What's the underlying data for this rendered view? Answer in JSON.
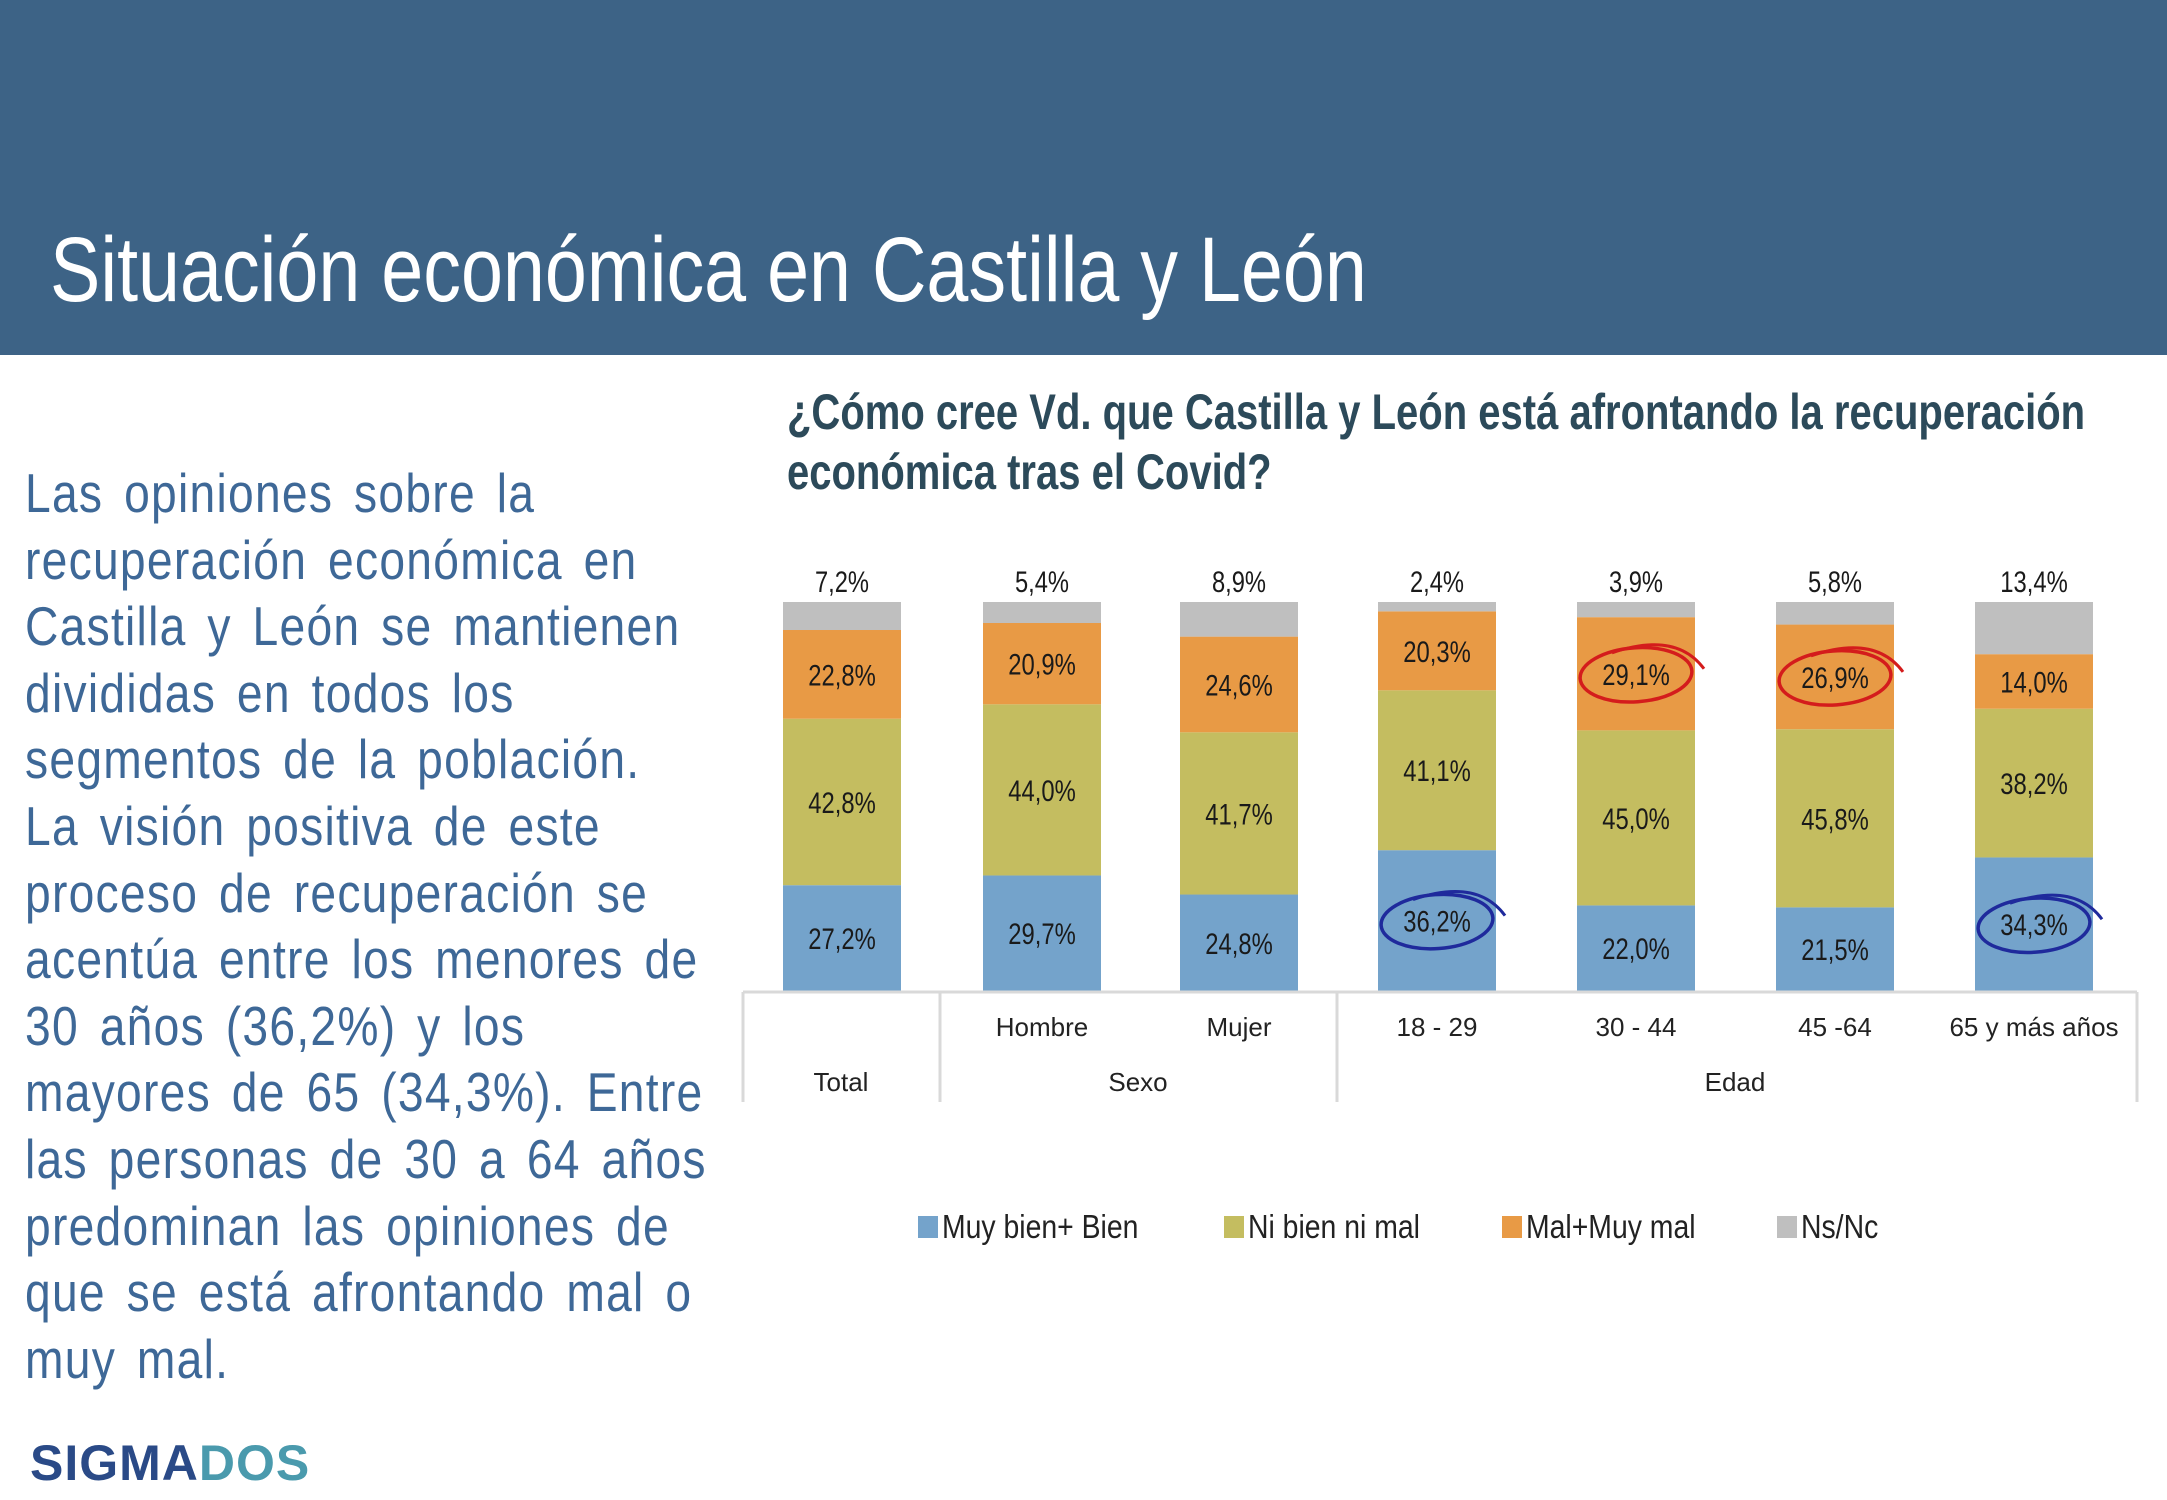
{
  "header": {
    "title": "Situación económica en Castilla y León"
  },
  "body_text": {
    "lines": [
      "Las opiniones sobre la",
      "recuperación económica en",
      "Castilla y León se mantienen",
      "divididas en todos los",
      "segmentos de la población.",
      "La visión positiva de este",
      "proceso de recuperación se",
      "acentúa entre los menores de",
      "30 años (36,2%) y los",
      "mayores de 65 (34,3%). Entre",
      "las personas de 30 a 64 años",
      "predominan las opiniones de",
      "que se está afrontando mal o",
      "muy mal."
    ]
  },
  "logo": {
    "part1": "SIGMA",
    "part2": "DOS"
  },
  "colors": {
    "header_bg": "#3d6386",
    "muy_bien": "#74a3cb",
    "ni_bien": "#c4bd60",
    "mal": "#e89a45",
    "nsnc": "#bfbfbf",
    "highlight_blue": "#1f2a9c",
    "highlight_red": "#d41c1c"
  },
  "chart_data": {
    "type": "bar",
    "stacked": true,
    "title": "¿Cómo cree Vd. que Castilla y León está afrontando la recuperación económica tras el Covid?",
    "title_lines": [
      "¿Cómo cree Vd. que Castilla y León está afrontando la recuperación",
      "económica tras el Covid?"
    ],
    "categories": [
      "Total",
      "Hombre",
      "Mujer",
      "18 - 29",
      "30 - 44",
      "45 -64",
      "65 y más años"
    ],
    "groups": [
      {
        "label": "Total",
        "categories": [
          "Total"
        ]
      },
      {
        "label": "Sexo",
        "categories": [
          "Hombre",
          "Mujer"
        ]
      },
      {
        "label": "Edad",
        "categories": [
          "18 - 29",
          "30 - 44",
          "45 -64",
          "65 y más años"
        ]
      }
    ],
    "series": [
      {
        "name": "Muy bien+ Bien",
        "color": "#74a3cb",
        "values": [
          27.2,
          29.7,
          24.8,
          36.2,
          22.0,
          21.5,
          34.3
        ],
        "labels": [
          "27,2%",
          "29,7%",
          "24,8%",
          "36,2%",
          "22,0%",
          "21,5%",
          "34,3%"
        ]
      },
      {
        "name": "Ni bien ni mal",
        "color": "#c4bd60",
        "values": [
          42.8,
          44.0,
          41.7,
          41.1,
          45.0,
          45.8,
          38.2
        ],
        "labels": [
          "42,8%",
          "44,0%",
          "41,7%",
          "41,1%",
          "45,0%",
          "45,8%",
          "38,2%"
        ]
      },
      {
        "name": "Mal+Muy mal",
        "color": "#e89a45",
        "values": [
          22.8,
          20.9,
          24.6,
          20.3,
          29.1,
          26.9,
          14.0
        ],
        "labels": [
          "22,8%",
          "20,9%",
          "24,6%",
          "20,3%",
          "29,1%",
          "26,9%",
          "14,0%"
        ]
      },
      {
        "name": "Ns/Nc",
        "color": "#bfbfbf",
        "values": [
          7.2,
          5.4,
          8.9,
          2.4,
          3.9,
          5.8,
          13.4
        ],
        "labels": [
          "7,2%",
          "5,4%",
          "8,9%",
          "2,4%",
          "3,9%",
          "5,8%",
          "13,4%"
        ]
      }
    ],
    "highlighted": [
      {
        "series": "Muy bien+ Bien",
        "category": "18 - 29",
        "color": "blue"
      },
      {
        "series": "Muy bien+ Bien",
        "category": "65 y más años",
        "color": "blue"
      },
      {
        "series": "Mal+Muy mal",
        "category": "30 - 44",
        "color": "red"
      },
      {
        "series": "Mal+Muy mal",
        "category": "45 -64",
        "color": "red"
      }
    ],
    "ylim": [
      0,
      100
    ],
    "ylabel": "",
    "xlabel": "",
    "grid": false,
    "legend": {
      "position": "bottom",
      "entries": [
        "Muy bien+ Bien",
        "Ni bien ni mal",
        "Mal+Muy mal",
        "Ns/Nc"
      ]
    }
  }
}
